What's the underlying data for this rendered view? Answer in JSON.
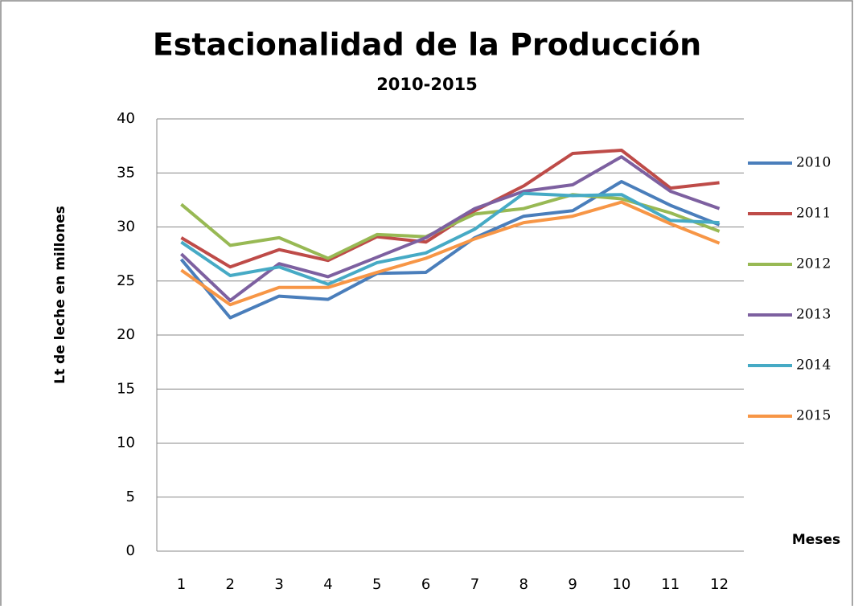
{
  "chart_data": {
    "type": "line",
    "title": "Estacionalidad de la Producción",
    "subtitle": "2010-2015",
    "y_label": "Lt de leche en millones",
    "x_label": "Meses",
    "categories": [
      "1",
      "2",
      "3",
      "4",
      "5",
      "6",
      "7",
      "8",
      "9",
      "10",
      "11",
      "12"
    ],
    "ylim": [
      0,
      40
    ],
    "yticks": [
      0,
      5,
      10,
      15,
      20,
      25,
      30,
      35,
      40
    ],
    "grid": true,
    "legend": "right",
    "series": [
      {
        "name": "2010",
        "color": "#4a7ebb",
        "values": [
          27.0,
          21.6,
          23.6,
          23.3,
          25.7,
          25.8,
          29.0,
          31.0,
          31.5,
          34.2,
          32.0,
          30.2
        ]
      },
      {
        "name": "2011",
        "color": "#be4b48",
        "values": [
          29.0,
          26.3,
          27.9,
          26.9,
          29.1,
          28.6,
          31.5,
          33.8,
          36.8,
          37.1,
          33.6,
          34.1
        ]
      },
      {
        "name": "2012",
        "color": "#98b954",
        "values": [
          32.1,
          28.3,
          29.0,
          27.1,
          29.3,
          29.1,
          31.2,
          31.7,
          33.0,
          32.6,
          31.3,
          29.6
        ]
      },
      {
        "name": "2013",
        "color": "#7d60a0",
        "values": [
          27.5,
          23.2,
          26.6,
          25.4,
          27.2,
          29.0,
          31.7,
          33.3,
          33.9,
          36.5,
          33.3,
          31.7
        ]
      },
      {
        "name": "2014",
        "color": "#46aac5",
        "values": [
          28.6,
          25.5,
          26.3,
          24.7,
          26.7,
          27.6,
          29.8,
          33.1,
          32.9,
          33.0,
          30.6,
          30.4
        ]
      },
      {
        "name": "2015",
        "color": "#f79646",
        "values": [
          26.0,
          22.8,
          24.4,
          24.4,
          25.8,
          27.1,
          28.9,
          30.4,
          31.0,
          32.3,
          30.3,
          28.5
        ]
      }
    ]
  }
}
